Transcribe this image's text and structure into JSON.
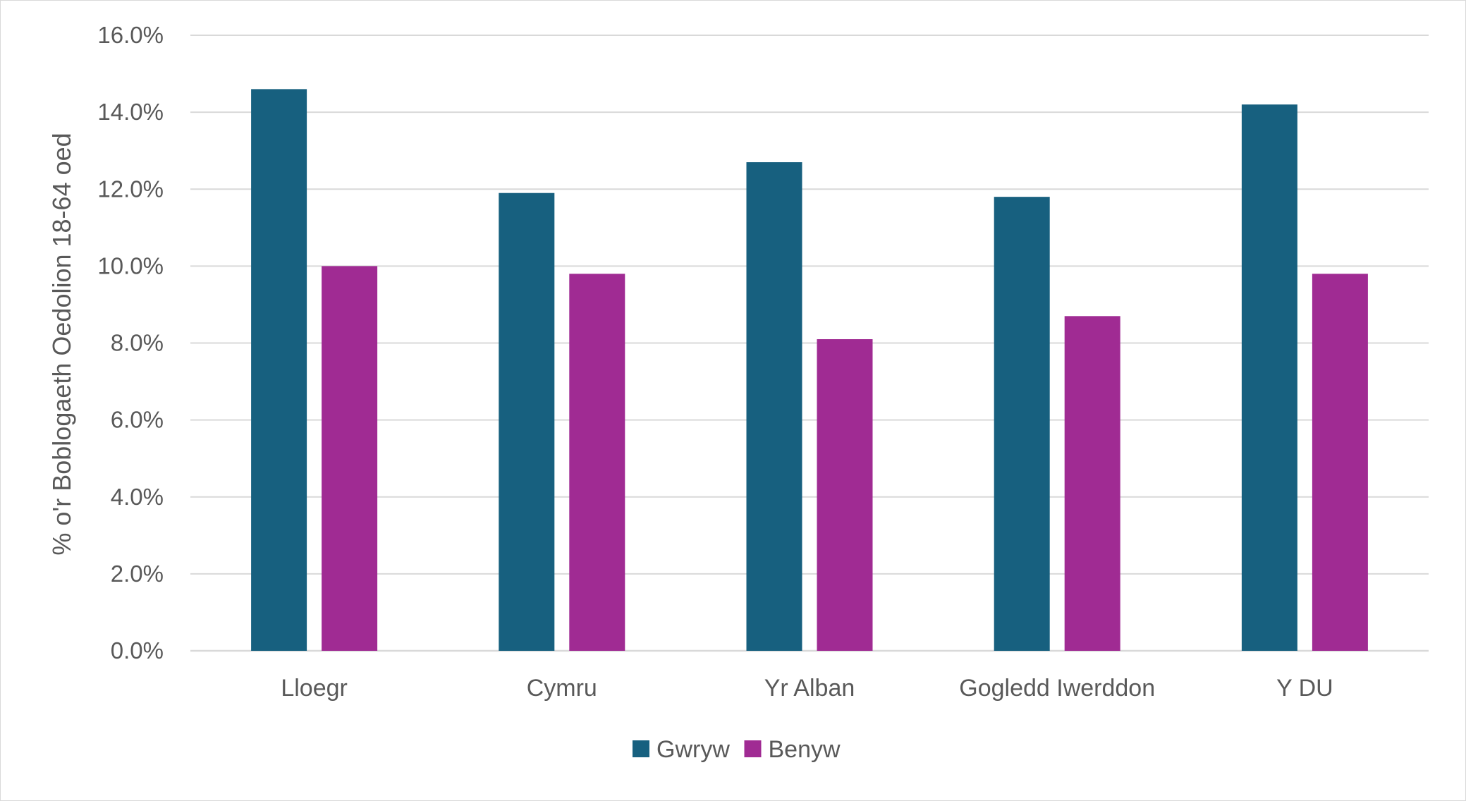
{
  "chart_data": {
    "type": "bar",
    "title": "",
    "xlabel": "",
    "ylabel": "% o'r Boblogaeth Oedolion 18-64 oed",
    "ylim": [
      0,
      16
    ],
    "y_ticks": [
      "0.0%",
      "2.0%",
      "4.0%",
      "6.0%",
      "8.0%",
      "10.0%",
      "12.0%",
      "14.0%",
      "16.0%"
    ],
    "categories": [
      "Lloegr",
      "Cymru",
      "Yr Alban",
      "Gogledd Iwerddon",
      "Y DU"
    ],
    "series": [
      {
        "name": "Gwryw",
        "color": "#17607f",
        "values": [
          14.6,
          11.9,
          12.7,
          11.8,
          14.2
        ]
      },
      {
        "name": "Benyw",
        "color": "#a02b93",
        "values": [
          10.0,
          9.8,
          8.1,
          8.7,
          9.8
        ]
      }
    ],
    "grid": true,
    "legend_position": "bottom"
  }
}
